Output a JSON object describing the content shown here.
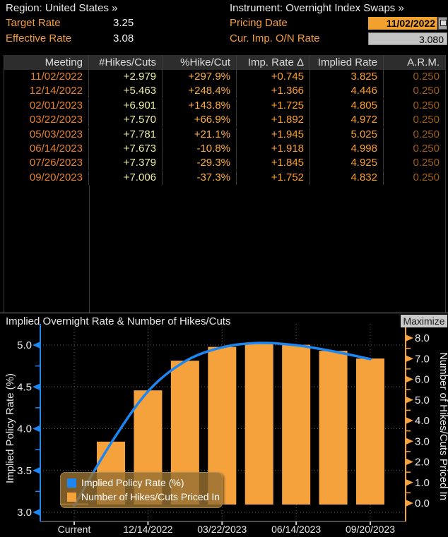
{
  "header": {
    "region": "Region: United States »",
    "target_rate_label": "Target Rate",
    "target_rate_value": "3.25",
    "effective_rate_label": "Effective Rate",
    "effective_rate_value": "3.08",
    "instrument": "Instrument: Overnight Index Swaps »",
    "pricing_date_label": "Pricing Date",
    "pricing_date_value": "11/02/2022",
    "cur_imp_label": "Cur. Imp. O/N Rate",
    "cur_imp_value": "3.080"
  },
  "table": {
    "columns": [
      "Meeting",
      "#Hikes/Cuts",
      "%Hike/Cut",
      "Imp. Rate Δ",
      "Implied Rate",
      "A.R.M."
    ],
    "rows": [
      [
        "11/02/2022",
        "+2.979",
        "+297.9%",
        "+0.745",
        "3.825",
        "0.250"
      ],
      [
        "12/14/2022",
        "+5.463",
        "+248.4%",
        "+1.366",
        "4.446",
        "0.250"
      ],
      [
        "02/01/2023",
        "+6.901",
        "+143.8%",
        "+1.725",
        "4.805",
        "0.250"
      ],
      [
        "03/22/2023",
        "+7.570",
        "+66.9%",
        "+1.892",
        "4.972",
        "0.250"
      ],
      [
        "05/03/2023",
        "+7.781",
        "+21.1%",
        "+1.945",
        "5.025",
        "0.250"
      ],
      [
        "06/14/2023",
        "+7.673",
        "-10.8%",
        "+1.918",
        "4.998",
        "0.250"
      ],
      [
        "07/26/2023",
        "+7.379",
        "-29.3%",
        "+1.845",
        "4.925",
        "0.250"
      ],
      [
        "09/20/2023",
        "+7.006",
        "-37.3%",
        "+1.752",
        "4.832",
        "0.250"
      ]
    ]
  },
  "chart": {
    "title": "Implied Overnight Rate & Number of Hikes/Cuts",
    "maximize_label": "Maximize"
  },
  "chart_data": {
    "type": "bar",
    "categories": [
      "Current",
      "11/02/2022",
      "12/14/2022",
      "02/01/2023",
      "03/22/2023",
      "05/03/2023",
      "06/14/2023",
      "07/26/2023",
      "09/20/2023"
    ],
    "series": [
      {
        "name": "Implied Policy Rate (%)",
        "type": "line",
        "axis": "left",
        "values": [
          3.08,
          3.825,
          4.446,
          4.805,
          4.972,
          5.025,
          4.998,
          4.925,
          4.832
        ]
      },
      {
        "name": "Number of Hikes/Cuts Priced In",
        "type": "bar",
        "axis": "right",
        "values": [
          0,
          2.979,
          5.463,
          6.901,
          7.57,
          7.781,
          7.673,
          7.379,
          7.006
        ]
      }
    ],
    "x_tick_indices": [
      0,
      2,
      4,
      6,
      8
    ],
    "left_axis": {
      "label": "Implied Policy Rate (%)",
      "min": 3.0,
      "max": 5.0,
      "major_ticks": [
        3.0,
        3.5,
        4.0,
        4.5,
        5.0
      ],
      "minor_ticks": [
        3.25,
        3.75,
        4.25,
        4.75
      ]
    },
    "right_axis": {
      "label": "Number of Hikes/Cuts Priced In",
      "min": 0.0,
      "max": 8.0,
      "major_ticks": [
        0.0,
        1.0,
        2.0,
        3.0,
        4.0,
        5.0,
        6.0,
        7.0,
        8.0
      ],
      "minor_ticks": [
        0.5,
        1.5,
        2.5,
        3.5,
        4.5,
        5.5,
        6.5,
        7.5
      ]
    },
    "grid": true,
    "legend_position": "bottom-left",
    "colors": {
      "line": "#1d86f0",
      "bars": "#f5a23c",
      "grid": "#606060",
      "axis_text": "#e8e8e8"
    }
  }
}
